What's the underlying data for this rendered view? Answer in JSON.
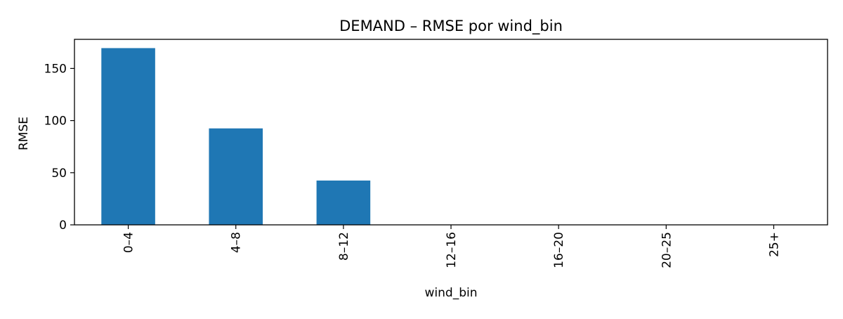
{
  "chart_data": {
    "type": "bar",
    "title": "DEMAND – RMSE por wind_bin",
    "xlabel": "wind_bin",
    "ylabel": "RMSE",
    "categories": [
      "0–4",
      "4–8",
      "8–12",
      "12–16",
      "16–20",
      "20–25",
      "25+"
    ],
    "values": [
      169.5,
      92.5,
      42.5,
      0,
      0,
      0,
      0
    ],
    "ylim": [
      0,
      177.9
    ],
    "yticks": [
      0,
      50,
      100,
      150
    ],
    "grid": false,
    "legend": "none",
    "bar_color": "#1f77b4"
  }
}
